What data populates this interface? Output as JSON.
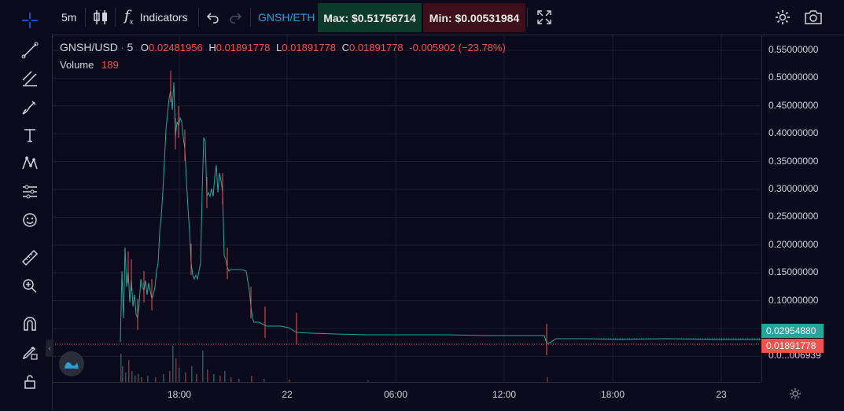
{
  "toolbar": {
    "interval": "5m",
    "indicators_label": "Indicators",
    "pair": "GNSH/ETH",
    "max_label": "Max: $0.51756714",
    "min_label": "Min: $0.00531984"
  },
  "legend": {
    "symbol": "GNSH/USD",
    "interval": "5",
    "o_label": "O",
    "o_value": "0.02481956",
    "h_label": "H",
    "h_value": "0.01891778",
    "l_label": "L",
    "l_value": "0.01891778",
    "c_label": "C",
    "c_value": "0.01891778",
    "change": "-0.005902 (−23.78%)",
    "volume_label": "Volume",
    "volume_value": "189"
  },
  "price_axis": {
    "ticks": [
      "0.55000000",
      "0.50000000",
      "0.45000000",
      "0.40000000",
      "0.35000000",
      "0.30000000",
      "0.25000000",
      "0.20000000",
      "0.15000000",
      "0.10000000",
      "0.0...006939"
    ],
    "last_green": "0.02954880",
    "last_red": "0.01891778"
  },
  "time_axis": {
    "ticks": [
      "18:00",
      "22",
      "06:00",
      "12:00",
      "18:00",
      "23"
    ]
  },
  "colors": {
    "up": "#26a69a",
    "down": "#ef5350",
    "bg": "#0b0a1c",
    "grid": "#1c1f2e"
  },
  "icons": [
    "crosshair-icon",
    "trend-line-icon",
    "fib-icon",
    "brush-icon",
    "text-icon",
    "pattern-icon",
    "prediction-icon",
    "emoji-icon",
    "ruler-icon",
    "zoom-icon",
    "magnet-icon",
    "lock-drawing-icon",
    "lock-icon",
    "candles-icon",
    "fx-icon",
    "undo-icon",
    "redo-icon",
    "fullscreen-icon",
    "settings-icon",
    "camera-icon",
    "gear-icon"
  ]
}
